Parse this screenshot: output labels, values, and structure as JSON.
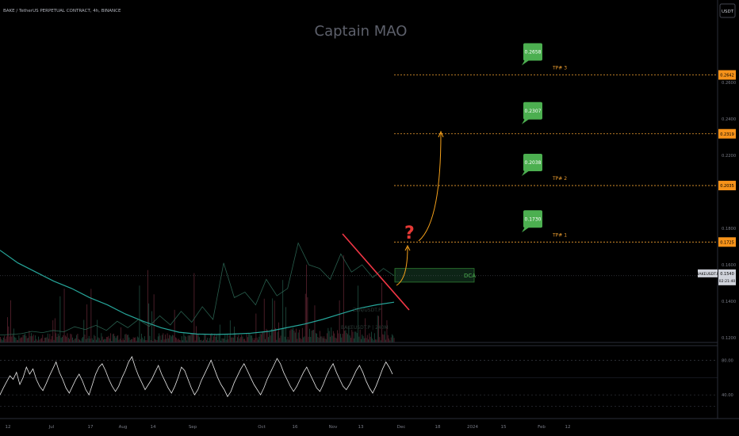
{
  "header": {
    "symbol_line": "BAKE / TetherUS PERPETUAL CONTRACT, 4h, BINANCE",
    "watermark": "Captain MAO",
    "currency_button": "USDT"
  },
  "chart_data": {
    "type": "line",
    "title": "",
    "price_axis": {
      "ticks": [
        "0.2600",
        "0.2400",
        "0.2200",
        "0.1800",
        "0.1600",
        "0.1400",
        "0.1200"
      ],
      "tick_values": [
        0.26,
        0.24,
        0.22,
        0.18,
        0.16,
        0.14,
        0.12
      ],
      "ylim": [
        0.12,
        0.275
      ]
    },
    "time_axis": {
      "ticks": [
        "12",
        "Jul",
        "17",
        "Aug",
        "14",
        "Sep",
        "Oct",
        "16",
        "Nov",
        "13",
        "Dec",
        "18",
        "2024",
        "15",
        "Feb",
        "12"
      ]
    },
    "price_series": {
      "name": "BAKEUSDT.P",
      "values": [
        0.1215,
        0.1218,
        0.1222,
        0.1235,
        0.1228,
        0.124,
        0.1232,
        0.126,
        0.1245,
        0.1268,
        0.124,
        0.129,
        0.1255,
        0.13,
        0.1262,
        0.132,
        0.127,
        0.1345,
        0.1285,
        0.137,
        0.13,
        0.161,
        0.142,
        0.145,
        0.138,
        0.152,
        0.143,
        0.147,
        0.172,
        0.16,
        0.158,
        0.152,
        0.166,
        0.156,
        0.16,
        0.153,
        0.158,
        0.154
      ]
    },
    "moving_average": {
      "values": [
        0.168,
        0.161,
        0.156,
        0.151,
        0.147,
        0.142,
        0.138,
        0.133,
        0.129,
        0.1255,
        0.123,
        0.122,
        0.1218,
        0.122,
        0.1225,
        0.1235,
        0.1255,
        0.1275,
        0.13,
        0.133,
        0.136,
        0.138,
        0.1395
      ]
    },
    "levels": [
      {
        "label": "TP# 3",
        "value": 0.2642,
        "axis_label": "0.2642",
        "bubble": "0.2658"
      },
      {
        "label": "",
        "value": 0.2319,
        "axis_label": "0.2319",
        "bubble": "0.2307"
      },
      {
        "label": "TP# 2",
        "value": 0.2035,
        "axis_label": "0.2035",
        "bubble": "0.2038"
      },
      {
        "label": "TP# 1",
        "value": 0.1725,
        "axis_label": "0.1725",
        "bubble": "0.1730"
      }
    ],
    "dca_zone": {
      "label": "DCA",
      "top": 0.158,
      "bottom": 0.1505
    },
    "current_price": {
      "symbol": "BAKEUSDT.P",
      "value": "0.1540",
      "countdown": "02:21:40",
      "price": 0.154
    },
    "annotations": {
      "question": "?",
      "faint_lines": [
        "ZEN/USDT.P",
        "BAKEUSDT.P | 240M"
      ]
    },
    "oscillator": {
      "ticks": [
        "80.00",
        "40.00"
      ],
      "tick_values": [
        80,
        40
      ],
      "ylim": [
        20,
        95
      ],
      "values": [
        40,
        48,
        55,
        62,
        58,
        66,
        52,
        60,
        72,
        64,
        70,
        58,
        50,
        45,
        53,
        62,
        70,
        78,
        66,
        58,
        48,
        42,
        50,
        58,
        64,
        56,
        46,
        40,
        52,
        64,
        72,
        76,
        68,
        58,
        50,
        44,
        50,
        60,
        68,
        78,
        84,
        72,
        62,
        54,
        46,
        52,
        58,
        66,
        74,
        64,
        56,
        48,
        42,
        50,
        60,
        72,
        68,
        58,
        48,
        40,
        46,
        56,
        64,
        72,
        80,
        70,
        60,
        52,
        46,
        38,
        44,
        54,
        62,
        70,
        76,
        68,
        60,
        52,
        46,
        40,
        48,
        58,
        66,
        74,
        82,
        76,
        66,
        58,
        50,
        44,
        50,
        58,
        66,
        72,
        64,
        56,
        48,
        44,
        52,
        62,
        70,
        76,
        66,
        58,
        50,
        46,
        52,
        60,
        68,
        74,
        66,
        56,
        48,
        42,
        50,
        60,
        70,
        78,
        72,
        64
      ]
    }
  }
}
